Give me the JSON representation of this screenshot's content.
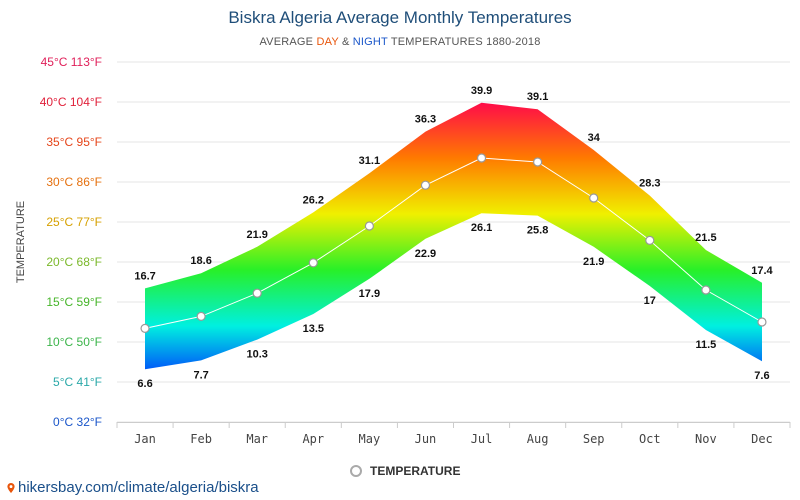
{
  "header": {
    "title": "Biskra Algeria Average Monthly Temperatures",
    "subtitle_prefix": "AVERAGE ",
    "subtitle_day": "DAY",
    "subtitle_amp": " & ",
    "subtitle_night": "NIGHT",
    "subtitle_suffix": " TEMPERATURES 1880-2018"
  },
  "legend": {
    "label": "TEMPERATURE"
  },
  "credit": {
    "text": "hikersbay.com/climate/algeria/biskra"
  },
  "colors": {
    "day_accent": "#e8550b",
    "night_accent": "#1a56c9",
    "title": "#1f4e79",
    "credit": "#1a4f8a"
  },
  "chart_data": {
    "type": "area",
    "title": "Biskra Algeria Average Monthly Temperatures",
    "ylabel": "TEMPERATURE",
    "categories": [
      "Jan",
      "Feb",
      "Mar",
      "Apr",
      "May",
      "Jun",
      "Jul",
      "Aug",
      "Sep",
      "Oct",
      "Nov",
      "Dec"
    ],
    "ylim": [
      0,
      45
    ],
    "y_ticks": [
      {
        "value": 0,
        "label": "0°C 32°F",
        "color": "#1a56c9"
      },
      {
        "value": 5,
        "label": "5°C 41°F",
        "color": "#2aa8a8"
      },
      {
        "value": 10,
        "label": "10°C 50°F",
        "color": "#3bb44a"
      },
      {
        "value": 15,
        "label": "15°C 59°F",
        "color": "#46b52a"
      },
      {
        "value": 20,
        "label": "20°C 68°F",
        "color": "#7ab82a"
      },
      {
        "value": 25,
        "label": "25°C 77°F",
        "color": "#d6a000"
      },
      {
        "value": 30,
        "label": "30°C 86°F",
        "color": "#e5700e"
      },
      {
        "value": 35,
        "label": "35°C 95°F",
        "color": "#e5451a"
      },
      {
        "value": 40,
        "label": "40°C 104°F",
        "color": "#e0203a"
      },
      {
        "value": 45,
        "label": "45°C 113°F",
        "color": "#e0205a"
      }
    ],
    "series": [
      {
        "name": "Day",
        "values": [
          16.7,
          18.6,
          21.9,
          26.2,
          31.1,
          36.3,
          39.9,
          39.1,
          34,
          28.3,
          21.5,
          17.4
        ]
      },
      {
        "name": "Night",
        "values": [
          6.6,
          7.7,
          10.3,
          13.5,
          17.9,
          22.9,
          26.1,
          25.8,
          21.9,
          17,
          11.5,
          7.6
        ]
      },
      {
        "name": "TEMPERATURE",
        "values": [
          11.7,
          13.2,
          16.1,
          19.9,
          24.5,
          29.6,
          33,
          32.5,
          28,
          22.7,
          16.5,
          12.5
        ]
      }
    ],
    "grid": true,
    "legend_position": "bottom"
  }
}
